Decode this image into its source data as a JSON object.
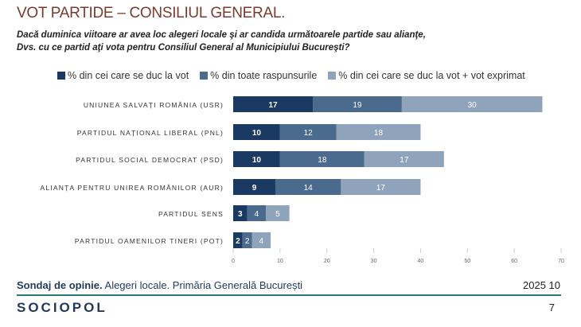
{
  "header": {
    "title": "VOT PARTIDE – CONSILIUL GENERAL.",
    "question": "Dacă duminica viitoare ar avea loc alegeri locale şi ar candida următoarele partide sau alianţe, Dvs. cu ce partid aţi vota pentru Consiliul General al Municipiului Bucureşti?"
  },
  "chart_data": {
    "type": "bar",
    "orientation": "horizontal",
    "stacked": true,
    "categories": [
      "UNIUNEA SALVAȚI ROMÂNIA (USR)",
      "PARTIDUL NAȚIONAL LIBERAL (PNL)",
      "PARTIDUL SOCIAL DEMOCRAT (PSD)",
      "ALIANȚA PENTRU UNIREA ROMÂNILOR (AUR)",
      "PARTIDUL SENS",
      "PARTIDUL OAMENILOR TINERI (POT)"
    ],
    "series": [
      {
        "name": "% din cei care se duc la vot",
        "color": "#1a3a63",
        "values": [
          17,
          10,
          10,
          9,
          3,
          2
        ]
      },
      {
        "name": "% din toate raspunsurile",
        "color": "#4a6b8e",
        "values": [
          19,
          12,
          18,
          14,
          4,
          2
        ]
      },
      {
        "name": "% din cei care se duc la vot + vot exprimat",
        "color": "#8fa3ba",
        "values": [
          30,
          18,
          17,
          17,
          5,
          4
        ]
      }
    ],
    "xlim": [
      0,
      70
    ],
    "xticks": [
      0,
      10,
      20,
      30,
      40,
      50,
      60,
      70
    ],
    "legend": "top",
    "grid": false
  },
  "footer": {
    "survey_bold": "Sondaj de opinie.",
    "survey_rest": " Alegeri locale. Primăria Generală București",
    "date": "2025 10",
    "logo": "SOCIOPOL",
    "page": "7"
  }
}
